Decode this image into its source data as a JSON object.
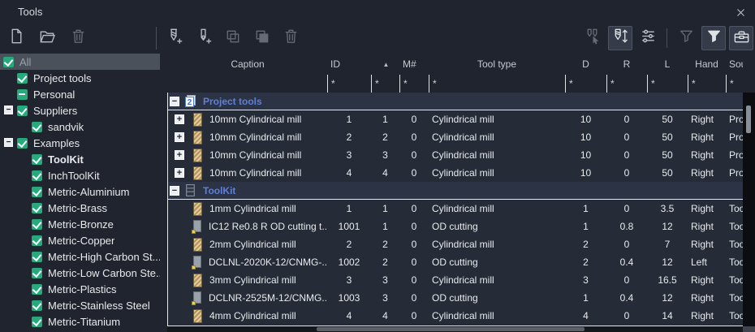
{
  "window": {
    "title": "Tools"
  },
  "colors": {
    "background": "#20242e",
    "table_background": "#252b37",
    "group_row_background": "#2c3344",
    "group_text": "#5c80d8",
    "checkbox_green": "#27a97c",
    "selected_tree_row": "#4a515b",
    "text": "#e8eaed",
    "separator_white": "#e6e9ec"
  },
  "sidebar": {
    "toolbar": [
      {
        "icon": "new-document-icon",
        "disabled": false
      },
      {
        "icon": "open-folder-icon",
        "disabled": false
      },
      {
        "icon": "delete-icon",
        "disabled": true
      }
    ],
    "tree": [
      {
        "label": "All",
        "level": 0,
        "state": "checked",
        "selected": true
      },
      {
        "label": "Project tools",
        "level": 1,
        "state": "checked"
      },
      {
        "label": "Personal",
        "level": 1,
        "state": "partial"
      },
      {
        "label": "Suppliers",
        "level": 1,
        "state": "checked",
        "expander": true
      },
      {
        "label": "sandvik",
        "level": 2,
        "state": "checked"
      },
      {
        "label": "Examples",
        "level": 1,
        "state": "checked",
        "expander": true
      },
      {
        "label": "ToolKit",
        "level": 2,
        "state": "checked",
        "bold": true
      },
      {
        "label": "InchToolKit",
        "level": 2,
        "state": "checked"
      },
      {
        "label": "Metric-Aluminium",
        "level": 2,
        "state": "checked"
      },
      {
        "label": "Metric-Brass",
        "level": 2,
        "state": "checked"
      },
      {
        "label": "Metric-Bronze",
        "level": 2,
        "state": "checked"
      },
      {
        "label": "Metric-Copper",
        "level": 2,
        "state": "checked"
      },
      {
        "label": "Metric-High Carbon St...",
        "level": 2,
        "state": "checked"
      },
      {
        "label": "Metric-Low Carbon Ste...",
        "level": 2,
        "state": "checked"
      },
      {
        "label": "Metric-Plastics",
        "level": 2,
        "state": "checked"
      },
      {
        "label": "Metric-Stainless Steel",
        "level": 2,
        "state": "checked"
      },
      {
        "label": "Metric-Titanium",
        "level": 2,
        "state": "checked"
      }
    ]
  },
  "toolbar": {
    "mid": [
      {
        "icon": "add-mill-tool-icon"
      },
      {
        "icon": "add-turning-tool-icon"
      },
      {
        "icon": "copy-icon",
        "disabled": true
      },
      {
        "icon": "paste-icon",
        "disabled": true
      },
      {
        "icon": "delete-icon",
        "disabled": true
      }
    ],
    "right": [
      {
        "icon": "select-tool-icon",
        "disabled": true
      },
      {
        "icon": "measure-tool-icon",
        "active": true
      },
      {
        "icon": "options-icon"
      },
      {
        "sep": true
      },
      {
        "icon": "filter-off-icon",
        "disabled": true
      },
      {
        "icon": "filter-icon",
        "active": true,
        "filled": true
      },
      {
        "icon": "toolbox-icon",
        "active": true
      }
    ]
  },
  "table": {
    "columns": [
      {
        "label": "Caption"
      },
      {
        "label": "ID"
      },
      {
        "label": "",
        "sort": "asc"
      },
      {
        "label": "M#"
      },
      {
        "label": "Tool type"
      },
      {
        "label": "D"
      },
      {
        "label": "R"
      },
      {
        "label": "L"
      },
      {
        "label": "Hand"
      },
      {
        "label": "Source"
      }
    ],
    "filters": [
      "",
      "*",
      "*",
      "*",
      "*",
      "*",
      "*",
      "*",
      "*",
      "*"
    ],
    "groups": [
      {
        "name": "Project tools",
        "icon": "project-group-icon",
        "rows": [
          {
            "icon": "mill-tool-icon",
            "expandable": true,
            "caption": "10mm Cylindrical mill",
            "id": "1",
            "n": "1",
            "m": "0",
            "type": "Cylindrical mill",
            "d": "10",
            "r": "0",
            "l": "50",
            "hand": "Right",
            "source": "Project tools"
          },
          {
            "icon": "mill-tool-icon",
            "expandable": true,
            "caption": "10mm Cylindrical mill",
            "id": "2",
            "n": "2",
            "m": "0",
            "type": "Cylindrical mill",
            "d": "10",
            "r": "0",
            "l": "50",
            "hand": "Right",
            "source": "Project tools"
          },
          {
            "icon": "mill-tool-icon",
            "expandable": true,
            "caption": "10mm Cylindrical mill",
            "id": "3",
            "n": "3",
            "m": "0",
            "type": "Cylindrical mill",
            "d": "10",
            "r": "0",
            "l": "50",
            "hand": "Right",
            "source": "Project tools"
          },
          {
            "icon": "mill-tool-icon",
            "expandable": true,
            "caption": "10mm Cylindrical mill",
            "id": "4",
            "n": "4",
            "m": "0",
            "type": "Cylindrical mill",
            "d": "10",
            "r": "0",
            "l": "50",
            "hand": "Right",
            "source": "Project tools"
          }
        ]
      },
      {
        "name": "ToolKit",
        "icon": "toolkit-group-icon",
        "rows": [
          {
            "icon": "mill-tool-icon",
            "expandable": false,
            "caption": "1mm Cylindrical mill",
            "id": "1",
            "n": "1",
            "m": "0",
            "type": "Cylindrical mill",
            "d": "1",
            "r": "0",
            "l": "3.5",
            "hand": "Right",
            "source": "ToolKit"
          },
          {
            "icon": "turning-tool-icon",
            "expandable": false,
            "caption": "IC12 Re0.8 R OD cutting t...",
            "id": "1001",
            "n": "1",
            "m": "0",
            "type": "OD cutting",
            "d": "1",
            "r": "0.8",
            "l": "12",
            "hand": "Right",
            "source": "ToolKit"
          },
          {
            "icon": "mill-tool-icon",
            "expandable": false,
            "caption": "2mm Cylindrical mill",
            "id": "2",
            "n": "2",
            "m": "0",
            "type": "Cylindrical mill",
            "d": "2",
            "r": "0",
            "l": "7",
            "hand": "Right",
            "source": "ToolKit"
          },
          {
            "icon": "turning-tool-icon",
            "expandable": false,
            "caption": "DCLNL-2020K-12/CNMG-...",
            "id": "1002",
            "n": "2",
            "m": "0",
            "type": "OD cutting",
            "d": "2",
            "r": "0.4",
            "l": "12",
            "hand": "Left",
            "source": "ToolKit"
          },
          {
            "icon": "mill-tool-icon",
            "expandable": false,
            "caption": "3mm Cylindrical mill",
            "id": "3",
            "n": "3",
            "m": "0",
            "type": "Cylindrical mill",
            "d": "3",
            "r": "0",
            "l": "16.5",
            "hand": "Right",
            "source": "ToolKit"
          },
          {
            "icon": "turning-tool-icon",
            "expandable": false,
            "caption": "DCLNR-2525M-12/CNMG...",
            "id": "1003",
            "n": "3",
            "m": "0",
            "type": "OD cutting",
            "d": "1",
            "r": "0.4",
            "l": "12",
            "hand": "Right",
            "source": "ToolKit"
          },
          {
            "icon": "mill-tool-icon",
            "expandable": false,
            "caption": "4mm Cylindrical mill",
            "id": "4",
            "n": "4",
            "m": "0",
            "type": "Cylindrical mill",
            "d": "4",
            "r": "0",
            "l": "14",
            "hand": "Right",
            "source": "ToolKit"
          }
        ]
      }
    ]
  }
}
